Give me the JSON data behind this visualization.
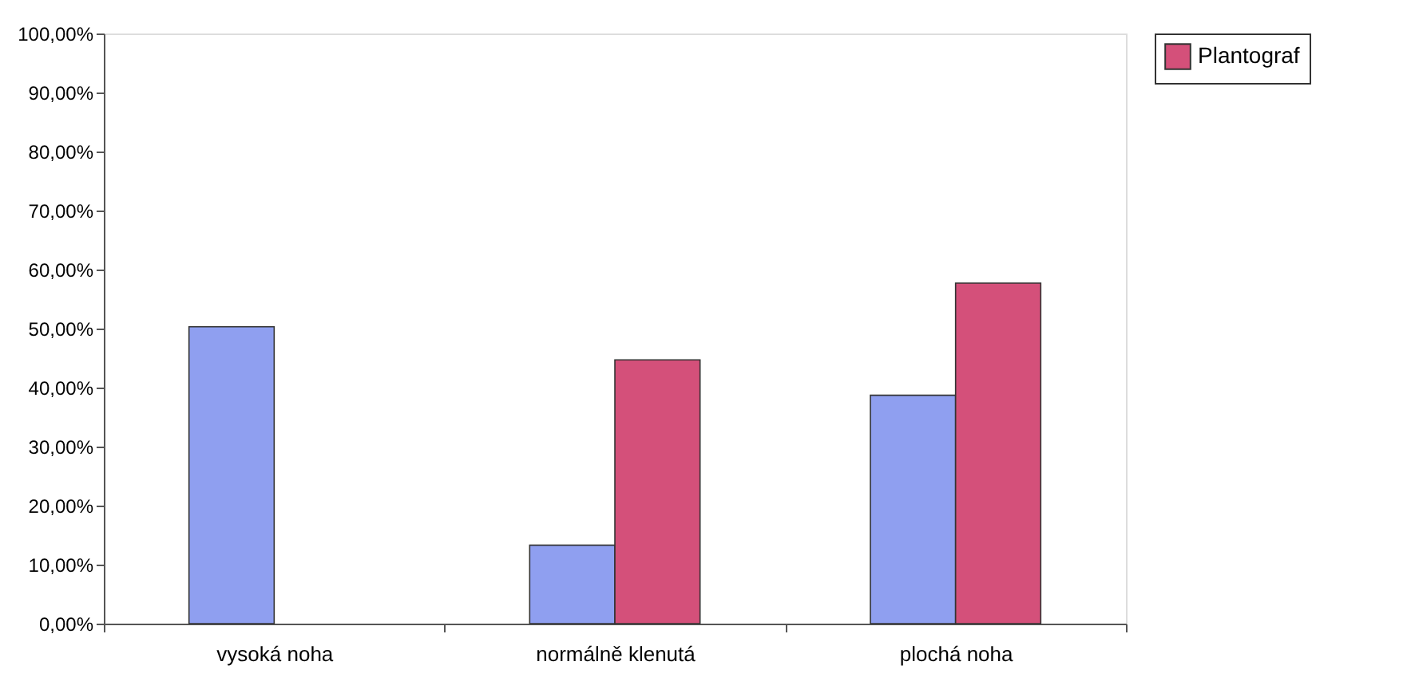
{
  "chart_data": {
    "type": "bar",
    "categories": [
      "vysoká noha",
      "normálně klenutá",
      "plochá noha"
    ],
    "series": [
      {
        "color": "#8f9ff0",
        "values": [
          50.3,
          13.3,
          38.7
        ]
      },
      {
        "name": "Plantograf",
        "color": "#d4507a",
        "values": [
          null,
          44.7,
          57.7
        ]
      }
    ],
    "ylim": [
      0,
      100
    ],
    "yticks": [
      {
        "value": 0,
        "label": "0,00%"
      },
      {
        "value": 10,
        "label": "10,00%"
      },
      {
        "value": 20,
        "label": "20,00%"
      },
      {
        "value": 30,
        "label": "30,00%"
      },
      {
        "value": 40,
        "label": "40,00%"
      },
      {
        "value": 50,
        "label": "50,00%"
      },
      {
        "value": 60,
        "label": "60,00%"
      },
      {
        "value": 70,
        "label": "70,00%"
      },
      {
        "value": 80,
        "label": "80,00%"
      },
      {
        "value": 90,
        "label": "90,00%"
      },
      {
        "value": 100,
        "label": "100,00%"
      }
    ],
    "grid": false,
    "legend": "right"
  }
}
